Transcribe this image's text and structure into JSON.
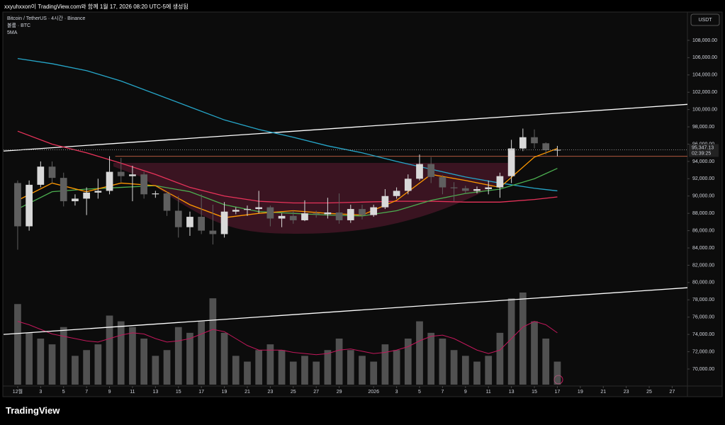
{
  "header": "xxyuhxxon이 TradingView.com와 함께 1월 17, 2026 08:20 UTC-5에 생성됨",
  "logo": "TradingView",
  "chart_data": {
    "type": "candlestick",
    "legend_lines": [
      "Bitcoin / TetherUS · 4시간 · Binance",
      "볼륨 · BTC",
      "5MA"
    ],
    "currency_button": "USDT",
    "x": [
      0,
      1,
      2,
      3,
      4,
      5,
      6,
      7,
      8,
      9,
      10,
      11,
      12,
      13,
      14,
      15,
      16,
      17,
      18,
      19,
      20,
      21,
      22,
      23,
      24,
      25,
      26,
      27,
      28,
      29,
      30,
      31,
      32,
      33,
      34,
      35,
      36,
      37,
      38,
      39,
      40,
      41,
      42,
      43,
      44,
      45,
      46,
      47
    ],
    "open": [
      91500,
      86500,
      91300,
      93400,
      92100,
      89400,
      89700,
      90400,
      90600,
      92800,
      92300,
      92500,
      90200,
      90300,
      88300,
      86400,
      87600,
      86000,
      85600,
      88200,
      88400,
      88500,
      88700,
      87400,
      87700,
      87200,
      88000,
      87900,
      88100,
      87200,
      88500,
      87800,
      88700,
      90000,
      90600,
      92000,
      93700,
      92200,
      91000,
      90900,
      90600,
      90800,
      91000,
      92300,
      95500,
      96800,
      96100,
      95300
    ],
    "high": [
      91800,
      91800,
      94000,
      94000,
      92700,
      90200,
      91000,
      92000,
      94600,
      94400,
      93500,
      92800,
      90600,
      90500,
      90000,
      88200,
      90200,
      89000,
      89300,
      88700,
      88900,
      90600,
      88900,
      88000,
      88300,
      89500,
      88300,
      89800,
      90300,
      89000,
      89000,
      89000,
      90800,
      91000,
      92500,
      94800,
      94500,
      92400,
      91600,
      91200,
      91100,
      91800,
      92700,
      96500,
      97800,
      97700,
      96200,
      95800
    ],
    "low": [
      83800,
      86000,
      91000,
      91500,
      88800,
      88900,
      87800,
      89700,
      90200,
      91600,
      89400,
      89700,
      89800,
      87700,
      85200,
      85400,
      85600,
      84400,
      85200,
      87900,
      87700,
      88000,
      86500,
      86400,
      86800,
      87100,
      87500,
      87400,
      86800,
      86900,
      87300,
      87600,
      88500,
      89700,
      90200,
      91800,
      91500,
      90200,
      89400,
      90300,
      90300,
      90200,
      89800,
      91500,
      95200,
      95500,
      94800,
      94600
    ],
    "close": [
      86500,
      91300,
      93400,
      92100,
      89400,
      89700,
      90400,
      90600,
      92800,
      92300,
      92500,
      90200,
      90300,
      88300,
      86400,
      87600,
      86000,
      85600,
      88200,
      88400,
      88500,
      88700,
      87400,
      87700,
      87200,
      88000,
      87900,
      88100,
      87200,
      88500,
      87800,
      88700,
      90000,
      90600,
      92000,
      93700,
      92200,
      91000,
      90900,
      90600,
      90800,
      91000,
      92300,
      95500,
      96800,
      96100,
      95300,
      95347.13
    ],
    "volume": [
      70,
      45,
      40,
      35,
      50,
      25,
      30,
      35,
      60,
      55,
      50,
      40,
      25,
      30,
      50,
      45,
      55,
      75,
      45,
      25,
      20,
      30,
      35,
      30,
      20,
      25,
      20,
      30,
      40,
      30,
      25,
      20,
      35,
      30,
      40,
      55,
      45,
      40,
      30,
      25,
      20,
      25,
      45,
      75,
      80,
      55,
      40,
      20
    ],
    "volume_ma": [
      55,
      52,
      48,
      44,
      42,
      40,
      38,
      37,
      40,
      43,
      45,
      44,
      40,
      37,
      38,
      40,
      44,
      48,
      46,
      40,
      34,
      30,
      30,
      30,
      28,
      27,
      26,
      27,
      30,
      31,
      29,
      27,
      28,
      30,
      33,
      38,
      42,
      43,
      40,
      35,
      30,
      27,
      30,
      40,
      50,
      55,
      52,
      45
    ],
    "up_color": "#d9d9d9",
    "down_color": "#5f5f5f",
    "volume_color": "#8a8a8a",
    "volume_ma_color": "#c2185b",
    "ma_x": [
      0,
      3,
      6,
      9,
      12,
      15,
      18,
      21,
      24,
      27,
      30,
      33,
      36,
      39,
      42,
      45,
      47
    ],
    "ma_series": [
      {
        "color": "#26a6c9",
        "values": [
          105900,
          105300,
          104500,
          103300,
          101800,
          100300,
          98800,
          97700,
          96800,
          95800,
          95000,
          94000,
          93100,
          92200,
          91500,
          90900,
          90600
        ]
      },
      {
        "color": "#e8335a",
        "values": [
          97500,
          96000,
          95000,
          93800,
          92500,
          91000,
          90000,
          89400,
          89200,
          89200,
          89300,
          89400,
          89400,
          89300,
          89300,
          89600,
          89900
        ]
      },
      {
        "color": "#4caf50",
        "values": [
          88500,
          90500,
          90800,
          91000,
          91200,
          90500,
          89000,
          88200,
          88000,
          87800,
          87700,
          88300,
          89500,
          90300,
          90800,
          92000,
          93200
        ]
      },
      {
        "color": "#ff9800",
        "values": [
          89500,
          91500,
          90500,
          91500,
          91200,
          89000,
          87500,
          88000,
          88300,
          88000,
          87800,
          89500,
          92500,
          91800,
          91000,
          94500,
          95500
        ]
      }
    ],
    "trend_lines": [
      {
        "x": [
          -1.23,
          58.33
        ],
        "values": [
          95200,
          100600
        ],
        "color": "#ffffff"
      },
      {
        "x": [
          -1.23,
          58.33
        ],
        "values": [
          74000,
          79400
        ],
        "color": "#ffffff"
      }
    ],
    "level_line": {
      "x": [
        8.5,
        58.33
      ],
      "values": [
        94600,
        94600
      ],
      "color": "#b0573f"
    },
    "last_price": {
      "value": 95347.13,
      "label": "95,347.13"
    },
    "countdown": "02:39:25",
    "xlim": [
      -1.23,
      58.33
    ],
    "ylim": [
      68034,
      111190
    ],
    "xticks": [
      {
        "value": 0,
        "label": "12월"
      },
      {
        "value": 2,
        "label": "3"
      },
      {
        "value": 4,
        "label": "5"
      },
      {
        "value": 6,
        "label": "7"
      },
      {
        "value": 8,
        "label": "9"
      },
      {
        "value": 10,
        "label": "11"
      },
      {
        "value": 12,
        "label": "13"
      },
      {
        "value": 14,
        "label": "15"
      },
      {
        "value": 16,
        "label": "17"
      },
      {
        "value": 18,
        "label": "19"
      },
      {
        "value": 20,
        "label": "21"
      },
      {
        "value": 22,
        "label": "23"
      },
      {
        "value": 24,
        "label": "25"
      },
      {
        "value": 26,
        "label": "27"
      },
      {
        "value": 28,
        "label": "29"
      },
      {
        "value": 31,
        "label": "2026"
      },
      {
        "value": 33,
        "label": "3"
      },
      {
        "value": 35,
        "label": "5"
      },
      {
        "value": 37,
        "label": "7"
      },
      {
        "value": 39,
        "label": "9"
      },
      {
        "value": 41,
        "label": "11"
      },
      {
        "value": 43,
        "label": "13"
      },
      {
        "value": 45,
        "label": "15"
      },
      {
        "value": 47,
        "label": "17"
      },
      {
        "value": 49,
        "label": "19"
      },
      {
        "value": 51,
        "label": "21"
      },
      {
        "value": 53,
        "label": "23"
      },
      {
        "value": 55,
        "label": "25"
      },
      {
        "value": 57,
        "label": "27"
      }
    ],
    "yticks": [
      {
        "value": 70000,
        "label": "70,000.00"
      },
      {
        "value": 72000,
        "label": "72,000.00"
      },
      {
        "value": 74000,
        "label": "74,000.00"
      },
      {
        "value": 76000,
        "label": "76,000.00"
      },
      {
        "value": 78000,
        "label": "78,000.00"
      },
      {
        "value": 80000,
        "label": "80,000.00"
      },
      {
        "value": 82000,
        "label": "82,000.00"
      },
      {
        "value": 84000,
        "label": "84,000.00"
      },
      {
        "value": 86000,
        "label": "86,000.00"
      },
      {
        "value": 88000,
        "label": "88,000.00"
      },
      {
        "value": 90000,
        "label": "90,000.00"
      },
      {
        "value": 92000,
        "label": "92,000.00"
      },
      {
        "value": 94000,
        "label": "94,000.00"
      },
      {
        "value": 96000,
        "label": "96,000.00"
      },
      {
        "value": 98000,
        "label": "98,000.00"
      },
      {
        "value": 100000,
        "label": "100,000.00"
      },
      {
        "value": 102000,
        "label": "102,000.00"
      },
      {
        "value": 104000,
        "label": "104,000.00"
      },
      {
        "value": 106000,
        "label": "106,000.00"
      },
      {
        "value": 108000,
        "label": "108,000.00"
      }
    ]
  }
}
